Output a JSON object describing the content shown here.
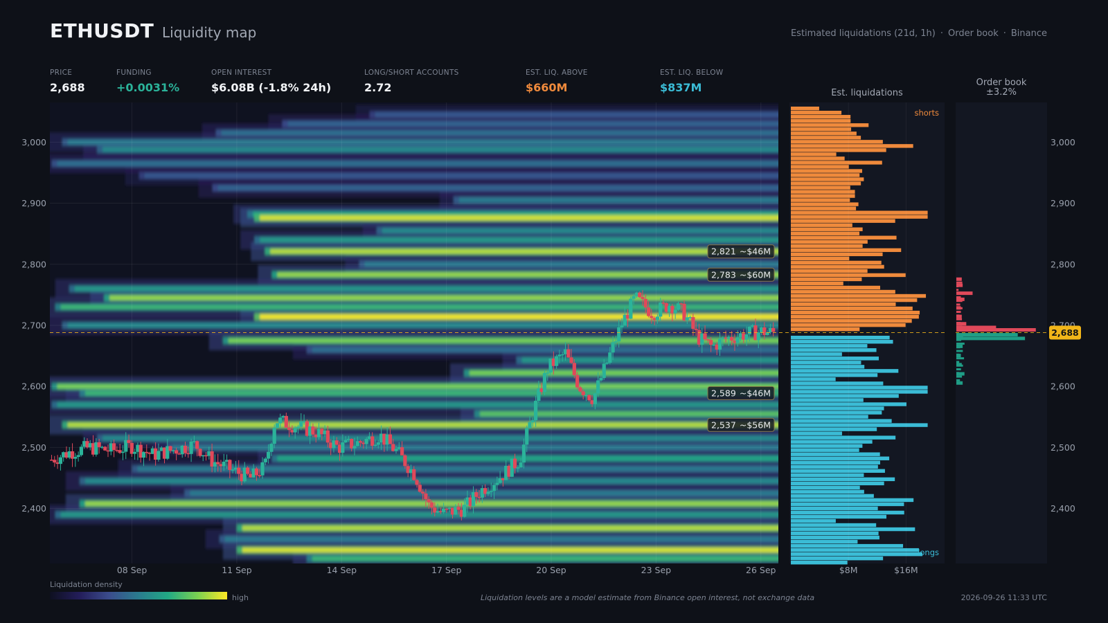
{
  "header": {
    "symbol": "ETHUSDT",
    "subtitle": "Liquidity map",
    "source_parts": [
      "Estimated liquidations (21d, 1h)",
      "Order book",
      "Binance"
    ]
  },
  "stats": [
    {
      "label": "PRICE",
      "value": "2,688",
      "color": "#f1f3f6"
    },
    {
      "label": "FUNDING",
      "value": "+0.0031%",
      "color": "#2bb39a"
    },
    {
      "label": "OPEN INTEREST",
      "value": "$6.08B (-1.8% 24h)",
      "color": "#f1f3f6"
    },
    {
      "label": "LONG/SHORT ACCOUNTS",
      "value": "2.72",
      "color": "#f1f3f6"
    },
    {
      "label": "EST. LIQ. ABOVE",
      "value": "$660M",
      "color": "#ef8a3c"
    },
    {
      "label": "EST. LIQ. BELOW",
      "value": "$837M",
      "color": "#3bbcd6"
    }
  ],
  "panels": {
    "est_liq_title": "Est. liquidations",
    "orderbook_title_1": "Order book",
    "orderbook_title_2": "±3.2%",
    "shorts_label": "shorts",
    "longs_label": "longs"
  },
  "legend": {
    "label": "Liquidation density",
    "high": "high"
  },
  "footer": {
    "note": "Liquidation levels are a model estimate from Binance open interest, not exchange data",
    "timestamp": "2026-09-26 11:33 UTC"
  },
  "chart_data": {
    "type": "heatmap",
    "price_axis": {
      "ylim": [
        2310,
        3065
      ],
      "ticks": [
        "2,400",
        "2,500",
        "2,600",
        "2,700",
        "2,800",
        "2,900",
        "3,000"
      ],
      "tick_values": [
        2400,
        2500,
        2600,
        2700,
        2800,
        2900,
        3000
      ]
    },
    "time_axis": {
      "ticks": [
        "08 Sep",
        "11 Sep",
        "14 Sep",
        "17 Sep",
        "20 Sep",
        "23 Sep",
        "26 Sep"
      ],
      "tick_days": [
        8,
        11,
        14,
        17,
        20,
        23,
        26
      ],
      "xlim_days": [
        5.65,
        26.5
      ]
    },
    "current_price": 2688,
    "current_price_label": "2,688",
    "colors": {
      "shorts": "#ef8a3c",
      "longs": "#3bbcd6",
      "bid": "#1f9e86",
      "ask": "#e0495a",
      "price_line": "#f2b619",
      "up_candle": "#2bb39a",
      "down_candle": "#e0495a"
    },
    "callouts": [
      {
        "price": 2821,
        "price_label": "2,821",
        "amount": "~$46M"
      },
      {
        "price": 2783,
        "price_label": "2,783",
        "amount": "~$60M"
      },
      {
        "price": 2589,
        "price_label": "2,589",
        "amount": "~$46M"
      },
      {
        "price": 2537,
        "price_label": "2,537",
        "amount": "~$56M"
      }
    ],
    "liq_bands": [
      {
        "price": 3045,
        "start": 14.8,
        "intensity": 0.35
      },
      {
        "price": 3030,
        "start": 12.3,
        "intensity": 0.4
      },
      {
        "price": 3015,
        "start": 10.4,
        "intensity": 0.45
      },
      {
        "price": 3000,
        "start": 6.0,
        "intensity": 0.5
      },
      {
        "price": 2988,
        "start": 7.0,
        "intensity": 0.55
      },
      {
        "price": 2965,
        "start": 5.7,
        "intensity": 0.45
      },
      {
        "price": 2945,
        "start": 8.2,
        "intensity": 0.35
      },
      {
        "price": 2925,
        "start": 10.3,
        "intensity": 0.4
      },
      {
        "price": 2905,
        "start": 17.2,
        "intensity": 0.5
      },
      {
        "price": 2882,
        "start": 11.3,
        "intensity": 0.65
      },
      {
        "price": 2876,
        "start": 11.5,
        "intensity": 0.95
      },
      {
        "price": 2855,
        "start": 15.0,
        "intensity": 0.55
      },
      {
        "price": 2840,
        "start": 11.5,
        "intensity": 0.6
      },
      {
        "price": 2821,
        "start": 11.8,
        "intensity": 0.9
      },
      {
        "price": 2800,
        "start": 14.5,
        "intensity": 0.5
      },
      {
        "price": 2783,
        "start": 12.0,
        "intensity": 0.85
      },
      {
        "price": 2760,
        "start": 6.2,
        "intensity": 0.6
      },
      {
        "price": 2745,
        "start": 7.2,
        "intensity": 0.85
      },
      {
        "price": 2730,
        "start": 5.8,
        "intensity": 0.7
      },
      {
        "price": 2714,
        "start": 11.5,
        "intensity": 1.0
      },
      {
        "price": 2700,
        "start": 6.0,
        "intensity": 0.55
      },
      {
        "price": 2675,
        "start": 10.6,
        "intensity": 0.8
      },
      {
        "price": 2660,
        "start": 13.0,
        "intensity": 0.45
      },
      {
        "price": 2643,
        "start": 19.0,
        "intensity": 0.6
      },
      {
        "price": 2622,
        "start": 17.5,
        "intensity": 0.8
      },
      {
        "price": 2600,
        "start": 5.7,
        "intensity": 0.8
      },
      {
        "price": 2589,
        "start": 6.5,
        "intensity": 0.7
      },
      {
        "price": 2570,
        "start": 5.7,
        "intensity": 0.6
      },
      {
        "price": 2555,
        "start": 17.8,
        "intensity": 0.75
      },
      {
        "price": 2537,
        "start": 6.0,
        "intensity": 0.9
      },
      {
        "price": 2515,
        "start": 7.0,
        "intensity": 0.55
      },
      {
        "price": 2500,
        "start": 9.0,
        "intensity": 0.5
      },
      {
        "price": 2482,
        "start": 12.0,
        "intensity": 0.65
      },
      {
        "price": 2465,
        "start": 8.0,
        "intensity": 0.5
      },
      {
        "price": 2445,
        "start": 6.5,
        "intensity": 0.55
      },
      {
        "price": 2425,
        "start": 9.5,
        "intensity": 0.5
      },
      {
        "price": 2408,
        "start": 6.5,
        "intensity": 0.85
      },
      {
        "price": 2390,
        "start": 5.8,
        "intensity": 0.6
      },
      {
        "price": 2368,
        "start": 11.0,
        "intensity": 0.9
      },
      {
        "price": 2350,
        "start": 10.5,
        "intensity": 0.5
      },
      {
        "price": 2332,
        "start": 11.0,
        "intensity": 0.95
      },
      {
        "price": 2318,
        "start": 13.0,
        "intensity": 0.7
      }
    ],
    "price_path": [
      [
        5.7,
        2480
      ],
      [
        6.2,
        2492
      ],
      [
        6.8,
        2500
      ],
      [
        7.4,
        2495
      ],
      [
        8.0,
        2502
      ],
      [
        8.6,
        2488
      ],
      [
        9.2,
        2496
      ],
      [
        9.8,
        2505
      ],
      [
        10.3,
        2478
      ],
      [
        10.9,
        2462
      ],
      [
        11.4,
        2450
      ],
      [
        11.8,
        2468
      ],
      [
        12.1,
        2545
      ],
      [
        12.7,
        2535
      ],
      [
        13.3,
        2525
      ],
      [
        13.9,
        2500
      ],
      [
        14.5,
        2508
      ],
      [
        15.1,
        2520
      ],
      [
        15.6,
        2492
      ],
      [
        16.1,
        2455
      ],
      [
        16.5,
        2405
      ],
      [
        16.9,
        2392
      ],
      [
        17.5,
        2400
      ],
      [
        18.0,
        2430
      ],
      [
        18.6,
        2455
      ],
      [
        19.1,
        2480
      ],
      [
        19.5,
        2560
      ],
      [
        19.9,
        2630
      ],
      [
        20.4,
        2655
      ],
      [
        20.8,
        2600
      ],
      [
        21.2,
        2580
      ],
      [
        21.6,
        2640
      ],
      [
        22.0,
        2700
      ],
      [
        22.4,
        2745
      ],
      [
        22.9,
        2720
      ],
      [
        23.4,
        2735
      ],
      [
        23.8,
        2720
      ],
      [
        24.2,
        2680
      ],
      [
        24.6,
        2665
      ],
      [
        25.0,
        2678
      ],
      [
        25.5,
        2685
      ],
      [
        26.0,
        2690
      ],
      [
        26.4,
        2688
      ]
    ],
    "liq_profile_max_musd": 20,
    "liq_profile_ticks": [
      "$8M",
      "$16M"
    ],
    "liq_profile_tick_values": [
      8,
      16
    ],
    "orderbook": {
      "asks": [
        [
          2775,
          0.3
        ],
        [
          2765,
          0.35
        ],
        [
          2752,
          0.9
        ],
        [
          2742,
          0.45
        ],
        [
          2728,
          0.25
        ],
        [
          2714,
          0.3
        ],
        [
          2702,
          0.55
        ],
        [
          2696,
          2.2
        ],
        [
          2692,
          4.4
        ]
      ],
      "bids": [
        [
          2684,
          3.4
        ],
        [
          2678,
          3.8
        ],
        [
          2665,
          0.35
        ],
        [
          2650,
          0.25
        ],
        [
          2635,
          0.3
        ],
        [
          2620,
          0.45
        ],
        [
          2605,
          0.35
        ]
      ],
      "max_musd": 4.6
    }
  }
}
